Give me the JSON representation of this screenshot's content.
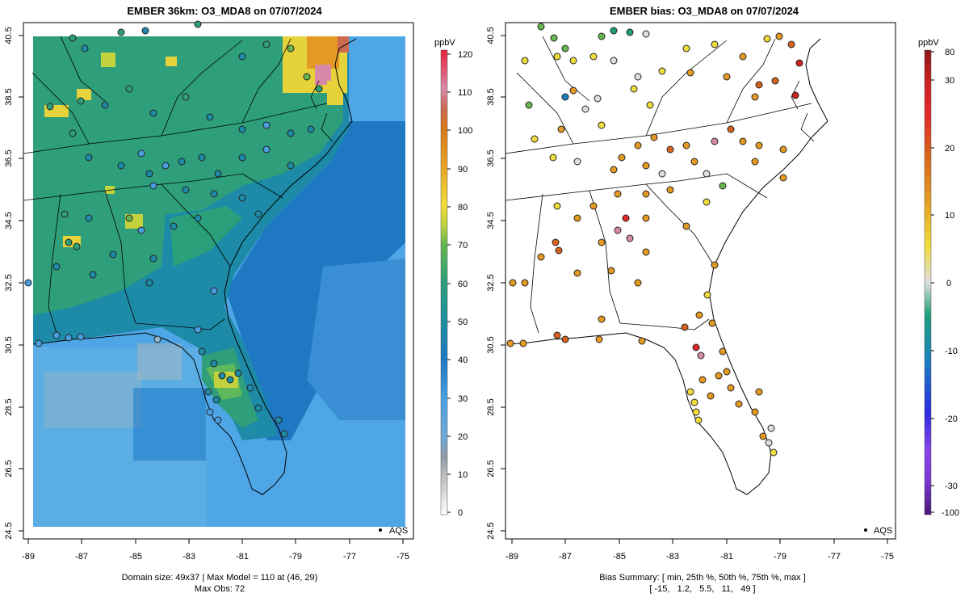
{
  "left_panel": {
    "title": "EMBER 36km: O3_MDA8 on 07/07/2024",
    "x_ticks": [
      "-89",
      "-87",
      "-85",
      "-83",
      "-81",
      "-79",
      "-77",
      "-75"
    ],
    "y_ticks": [
      "24.5",
      "26.5",
      "28.5",
      "30.5",
      "32.5",
      "34.5",
      "36.5",
      "38.5",
      "40.5"
    ],
    "legend_label": "AQS",
    "footer_line1": "Domain size: 49x37 | Max Model = 110 at (46, 29)",
    "footer_line2": "Max Obs: 72",
    "colorbar": {
      "unit": "ppbV",
      "labels": [
        "0",
        "10",
        "20",
        "30",
        "40",
        "50",
        "60",
        "70",
        "80",
        "90",
        "100",
        "110",
        "120"
      ],
      "range": [
        0,
        120
      ]
    }
  },
  "right_panel": {
    "title": "EMBER bias: O3_MDA8 on 07/07/2024",
    "x_ticks": [
      "-89",
      "-87",
      "-85",
      "-83",
      "-81",
      "-79",
      "-77",
      "-75"
    ],
    "y_ticks": [
      "24.5",
      "26.5",
      "28.5",
      "30.5",
      "32.5",
      "34.5",
      "36.5",
      "38.5",
      "40.5"
    ],
    "legend_label": "AQS",
    "footer_line1": "Bias Summary: [ min, 25th %, 50th %, 75th %, max ]",
    "footer_line2": "[ -15,   1.2,   5.5,   11,   49 ]",
    "colorbar": {
      "unit": "ppbV",
      "labels": [
        "-100",
        "-30",
        "-20",
        "-10",
        "0",
        "10",
        "20",
        "30",
        "80"
      ]
    }
  },
  "map_extent": {
    "lon": [
      -89.2,
      -74.8
    ],
    "lat": [
      24.4,
      40.7
    ]
  },
  "colors": {
    "coast": "#000000",
    "ocean_model": "#4fa6e6",
    "land_model": "#2e9f7a",
    "high_ozone": "#e6d23a",
    "max_ozone": "#d889a9"
  }
}
